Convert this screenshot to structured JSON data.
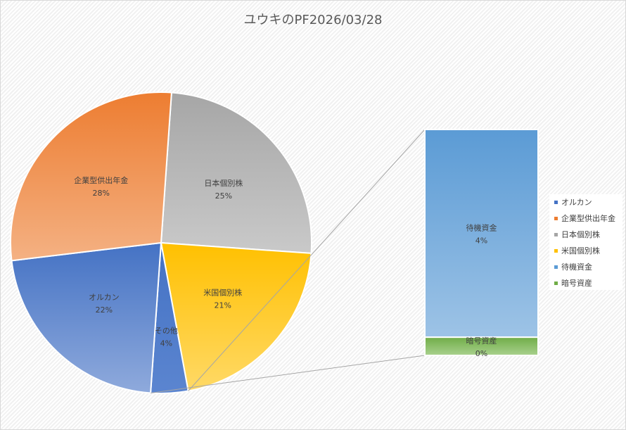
{
  "chart_data": {
    "type": "pie",
    "subtype": "bar-of-pie",
    "title": "ユウキのPF2026/03/28",
    "pie": [
      {
        "name": "日本個別株",
        "label": "25%",
        "value": 25,
        "color_top": "#a6a6a6",
        "color_bottom": "#c9c9c9"
      },
      {
        "name": "米国個別株",
        "label": "21%",
        "value": 21,
        "color_top": "#ffc000",
        "color_bottom": "#ffd966"
      },
      {
        "name": "その他",
        "label": "4%",
        "value": 4,
        "color_top": "#4472c4",
        "color_bottom": "#5b85d0"
      },
      {
        "name": "オルカン",
        "label": "22%",
        "value": 22,
        "color_top": "#4472c4",
        "color_bottom": "#8faadc"
      },
      {
        "name": "企業型供出年金",
        "label": "28%",
        "value": 28,
        "color_top": "#ed7d31",
        "color_bottom": "#f4b183"
      }
    ],
    "bar": [
      {
        "name": "待機資金",
        "label": "4%",
        "value": 4,
        "color_top": "#5b9bd5",
        "color_bottom": "#9dc3e6"
      },
      {
        "name": "暗号資産",
        "label": "0%",
        "value": 0.35,
        "color_top": "#70ad47",
        "color_bottom": "#a9d18e"
      }
    ],
    "legend": {
      "placement": "right",
      "items": [
        {
          "label": "オルカン",
          "color": "#4472c4"
        },
        {
          "label": "企業型供出年金",
          "color": "#ed7d31"
        },
        {
          "label": "日本個別株",
          "color": "#a5a5a5"
        },
        {
          "label": "米国個別株",
          "color": "#ffc000"
        },
        {
          "label": "待機資金",
          "color": "#5b9bd5"
        },
        {
          "label": "暗号資産",
          "color": "#70ad47"
        }
      ]
    }
  }
}
